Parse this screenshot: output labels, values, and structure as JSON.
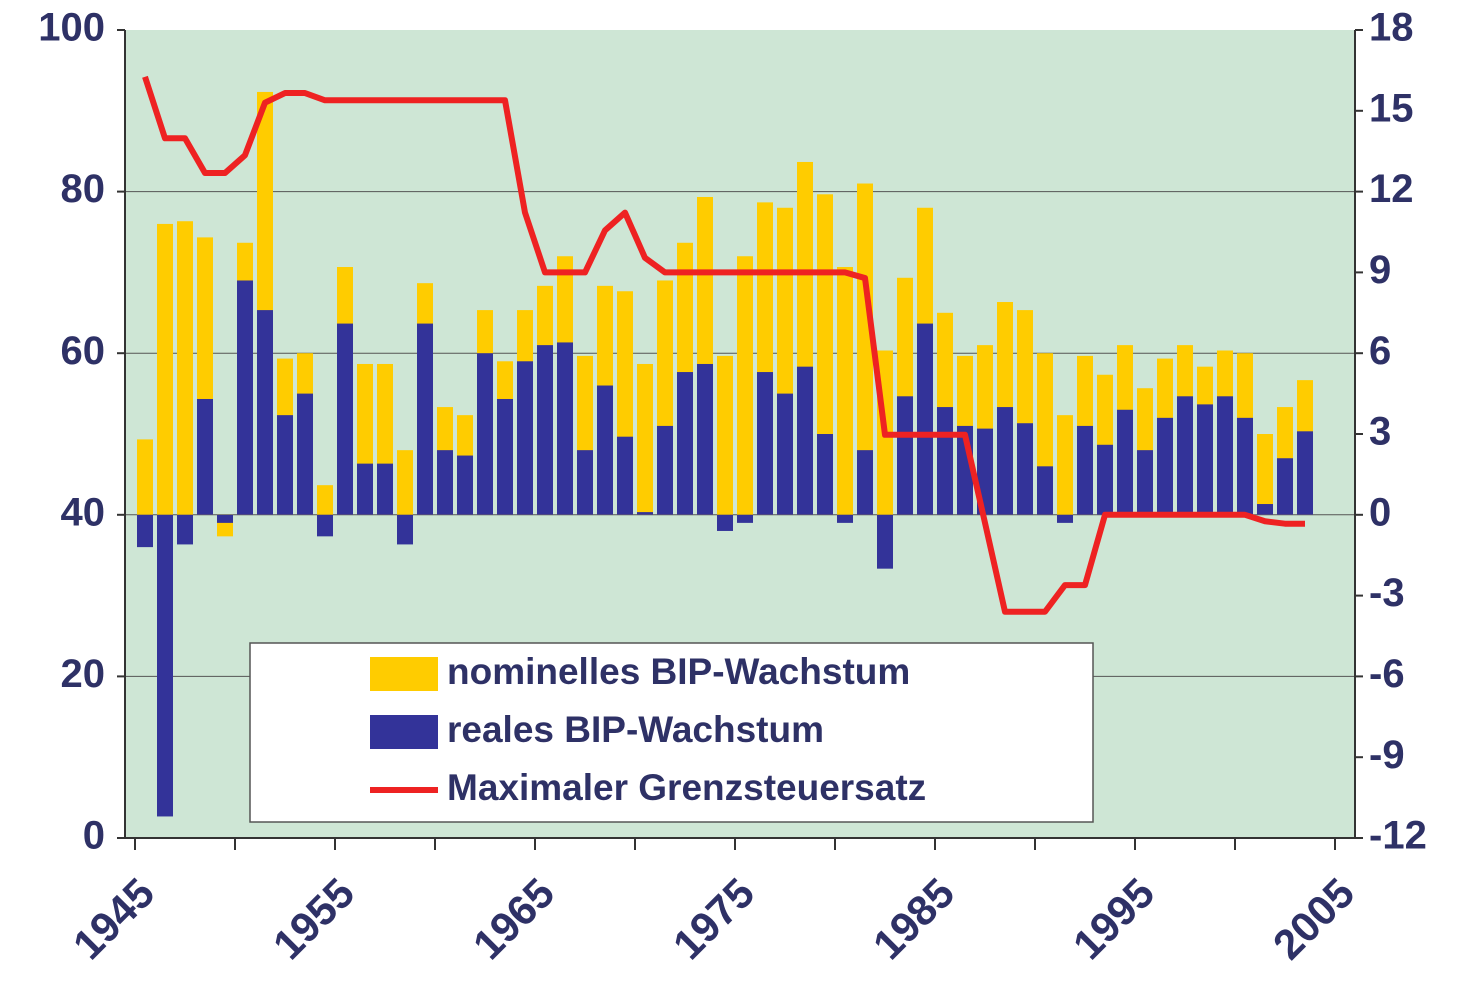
{
  "chart_data": {
    "type": "bar",
    "x": [
      1946,
      1947,
      1948,
      1949,
      1950,
      1951,
      1952,
      1953,
      1954,
      1955,
      1956,
      1957,
      1958,
      1959,
      1960,
      1961,
      1962,
      1963,
      1964,
      1965,
      1966,
      1967,
      1968,
      1969,
      1970,
      1971,
      1972,
      1973,
      1974,
      1975,
      1976,
      1977,
      1978,
      1979,
      1980,
      1981,
      1982,
      1983,
      1984,
      1985,
      1986,
      1987,
      1988,
      1989,
      1990,
      1991,
      1992,
      1993,
      1994,
      1995,
      1996,
      1997,
      1998,
      1999,
      2000,
      2001,
      2002,
      2003,
      2004
    ],
    "xlim": [
      1944.5,
      2006
    ],
    "xticks": [
      1945,
      1955,
      1965,
      1975,
      1985,
      1995,
      2005
    ],
    "xminorticks": [
      1950,
      1960,
      1970,
      1980,
      1990,
      2000
    ],
    "ylim": [
      0,
      100
    ],
    "yticks": [
      0,
      20,
      40,
      60,
      80,
      100
    ],
    "y2lim": [
      -12,
      18
    ],
    "y2ticks": [
      -12,
      -9,
      -6,
      -3,
      0,
      3,
      6,
      9,
      12,
      15,
      18
    ],
    "grid": true,
    "series": [
      {
        "name": "nominelles BIP-Wachstum",
        "type": "bar",
        "axis": "y2",
        "color": "#ffcc00",
        "values": [
          2.8,
          10.8,
          10.9,
          10.3,
          -0.8,
          10.1,
          15.7,
          5.8,
          6.0,
          1.1,
          9.2,
          5.6,
          5.6,
          2.4,
          8.6,
          4.0,
          3.7,
          7.6,
          5.7,
          7.6,
          8.5,
          9.6,
          5.9,
          8.5,
          8.3,
          5.6,
          8.7,
          10.1,
          11.8,
          5.9,
          9.6,
          11.6,
          11.4,
          13.1,
          11.9,
          9.2,
          12.3,
          6.1,
          8.8,
          11.4,
          7.5,
          5.9,
          6.3,
          7.9,
          7.6,
          6.0,
          3.7,
          5.9,
          5.2,
          6.3,
          4.7,
          5.8,
          6.3,
          5.5,
          6.1,
          6.0,
          3.0,
          4.0,
          5.0
        ]
      },
      {
        "name": "reales BIP-Wachstum",
        "type": "bar",
        "axis": "y2",
        "color": "#333399",
        "values": [
          -1.2,
          -11.2,
          -1.1,
          4.3,
          -0.3,
          8.7,
          7.6,
          3.7,
          4.5,
          -0.8,
          7.1,
          1.9,
          1.9,
          -1.1,
          7.1,
          2.4,
          2.2,
          6.0,
          4.3,
          5.7,
          6.3,
          6.4,
          2.4,
          4.8,
          2.9,
          0.1,
          3.3,
          5.3,
          5.6,
          -0.6,
          -0.3,
          5.3,
          4.5,
          5.5,
          3.0,
          -0.3,
          2.4,
          -2.0,
          4.4,
          7.1,
          4.0,
          3.3,
          3.2,
          4.0,
          3.4,
          1.8,
          -0.3,
          3.3,
          2.6,
          3.9,
          2.4,
          3.6,
          4.4,
          4.1,
          4.4,
          3.6,
          0.4,
          2.1,
          3.1
        ]
      },
      {
        "name": "Maximaler Grenzsteuersatz",
        "type": "line",
        "axis": "y",
        "color": "#ee2222",
        "values": [
          94.2,
          86.6,
          86.6,
          82.3,
          82.3,
          84.5,
          91,
          92.2,
          92.2,
          91.3,
          91.3,
          91.3,
          91.3,
          91.3,
          91.3,
          91.3,
          91.3,
          91.3,
          91.3,
          77.4,
          70,
          70,
          70,
          75.2,
          77.4,
          71.8,
          70,
          70,
          70,
          70,
          70,
          70,
          70,
          70,
          70,
          70,
          69.3,
          49.9,
          49.9,
          49.9,
          49.9,
          49.9,
          39,
          28,
          28,
          28,
          31.3,
          31.3,
          40,
          40,
          40,
          40,
          40,
          40,
          40,
          40,
          39.2,
          38.9,
          38.9
        ]
      }
    ]
  }
}
